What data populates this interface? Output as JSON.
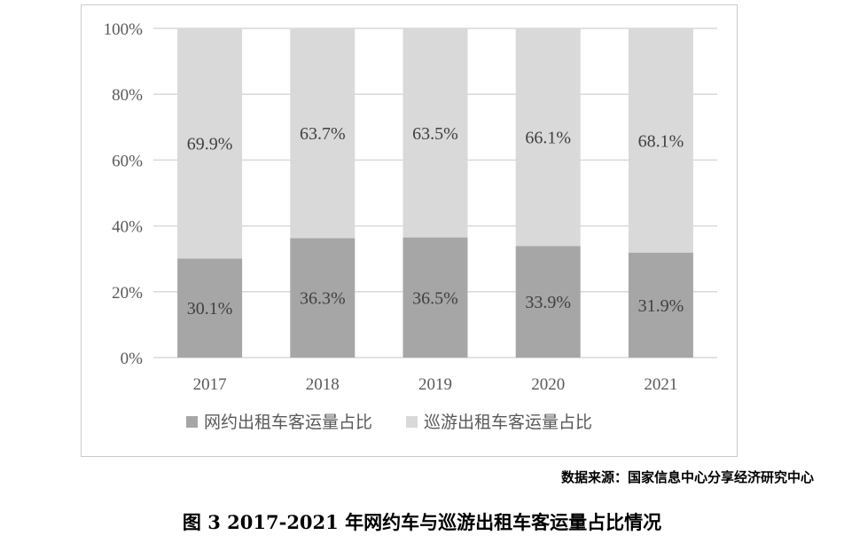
{
  "chart_data": {
    "type": "bar",
    "stacked": true,
    "percent": true,
    "categories": [
      "2017",
      "2018",
      "2019",
      "2020",
      "2021"
    ],
    "series": [
      {
        "name": "网约出租车客运量占比",
        "values": [
          30.1,
          36.3,
          36.5,
          33.9,
          31.9
        ],
        "labels": [
          "30.1%",
          "36.3%",
          "36.5%",
          "33.9%",
          "31.9%"
        ],
        "color": "#a6a6a6"
      },
      {
        "name": "巡游出租车客运量占比",
        "values": [
          69.9,
          63.7,
          63.5,
          66.1,
          68.1
        ],
        "labels": [
          "69.9%",
          "63.7%",
          "63.5%",
          "66.1%",
          "68.1%"
        ],
        "color": "#d9d9d9"
      }
    ],
    "ylim": [
      0,
      100
    ],
    "yticks": [
      "0%",
      "20%",
      "40%",
      "60%",
      "80%",
      "100%"
    ],
    "grid": true,
    "legend_position": "bottom",
    "gridline_color": "#d9d9d9"
  },
  "source_note": "数据来源：国家信息中心分享经济研究中心",
  "caption": "图 3 2017-2021 年网约车与巡游出租车客运量占比情况"
}
